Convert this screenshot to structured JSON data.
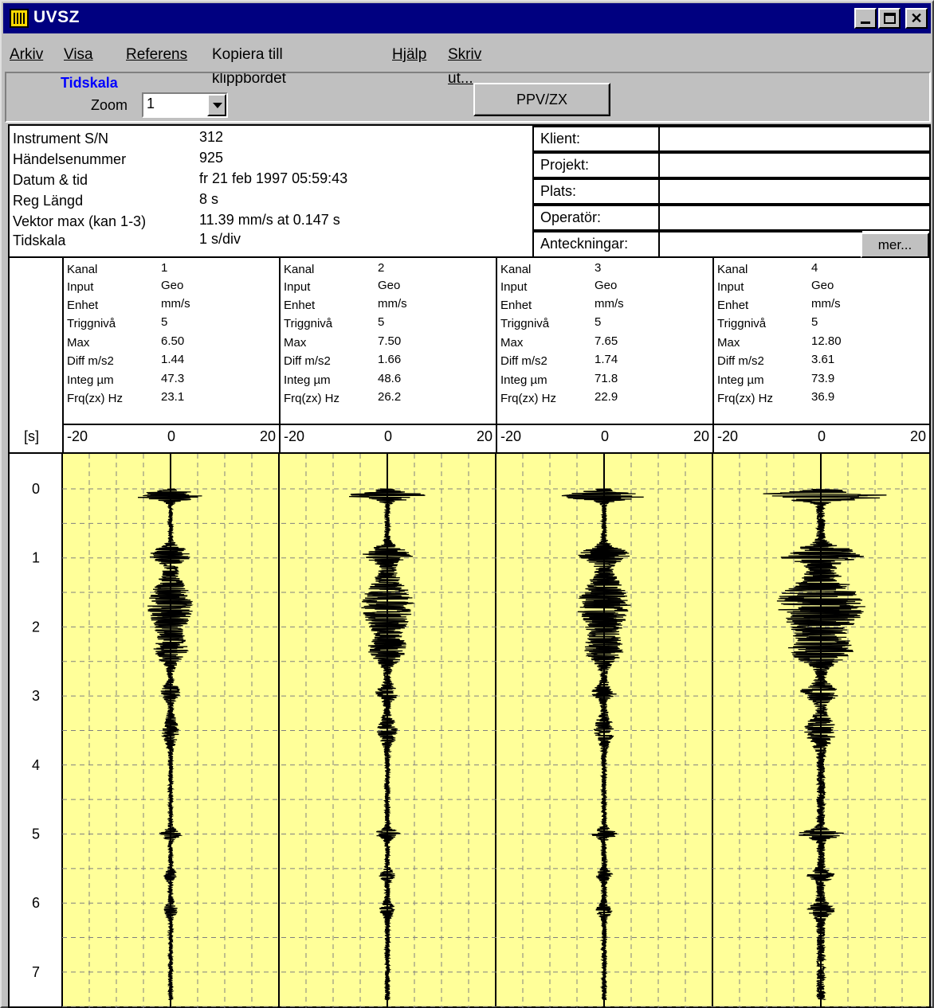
{
  "window": {
    "title": "UVSZ"
  },
  "menu": [
    {
      "label": "Arkiv",
      "accel": "A"
    },
    {
      "label": "Visa",
      "accel": "V"
    },
    {
      "label": "Referens",
      "accel": "R"
    },
    {
      "label": "Kopiera till klippbordet",
      "accel": ""
    },
    {
      "label": "Hjälp",
      "accel": "H"
    },
    {
      "label": "Skriv ut...",
      "accel": "S"
    }
  ],
  "toolbar": {
    "tidskala_label": "Tidskala",
    "zoom_label": "Zoom",
    "zoom_value": "1",
    "ppv_button": "PPV/ZX"
  },
  "info": {
    "rows": [
      {
        "label": "Instrument S/N",
        "value": "312"
      },
      {
        "label": "Händelsenummer",
        "value": "925"
      },
      {
        "label": "Datum & tid",
        "value": "fr 21 feb 1997 05:59:43"
      },
      {
        "label": "Reg Längd",
        "value": "8 s"
      },
      {
        "label": "Vektor max (kan 1-3)",
        "value": "11.39 mm/s at 0.147 s"
      },
      {
        "label": "Tidskala",
        "value": "1 s/div"
      }
    ]
  },
  "meta": {
    "klient": "Klient:",
    "projekt": "Projekt:",
    "plats": "Plats:",
    "operator": "Operatör:",
    "anteckningar": "Anteckningar:",
    "mer_button": "mer..."
  },
  "channel_labels": [
    "Kanal",
    "Input",
    "Enhet",
    "Triggnivå",
    "Max",
    "Diff m/s2",
    "Integ µm",
    "Frq(zx) Hz"
  ],
  "channels": [
    {
      "kanal": "1",
      "input": "Geo",
      "enhet": "mm/s",
      "trigg": "5",
      "max": "6.50",
      "diff": "1.44",
      "integ": "47.3",
      "frq": "23.1"
    },
    {
      "kanal": "2",
      "input": "Geo",
      "enhet": "mm/s",
      "trigg": "5",
      "max": "7.50",
      "diff": "1.66",
      "integ": "48.6",
      "frq": "26.2"
    },
    {
      "kanal": "3",
      "input": "Geo",
      "enhet": "mm/s",
      "trigg": "5",
      "max": "7.65",
      "diff": "1.74",
      "integ": "71.8",
      "frq": "22.9"
    },
    {
      "kanal": "4",
      "input": "Geo",
      "enhet": "mm/s",
      "trigg": "5",
      "max": "12.80",
      "diff": "3.61",
      "integ": "73.9",
      "frq": "36.9"
    }
  ],
  "scale": {
    "time_unit": "[s]",
    "min": "-20",
    "mid": "0",
    "max": "20"
  },
  "chart_data": {
    "type": "line",
    "y_ticks": [
      "0",
      "1",
      "2",
      "3",
      "4",
      "5",
      "6",
      "7"
    ],
    "x_range": [
      -20,
      20
    ],
    "y_range": [
      0,
      8
    ],
    "grid": true,
    "colors": {
      "background": "#ffff99",
      "grid": "#808080",
      "trace": "#000000"
    },
    "series": [
      {
        "name": "1",
        "peak": 6.5
      },
      {
        "name": "2",
        "peak": 7.5
      },
      {
        "name": "3",
        "peak": 7.65
      },
      {
        "name": "4",
        "peak": 12.8
      }
    ]
  }
}
